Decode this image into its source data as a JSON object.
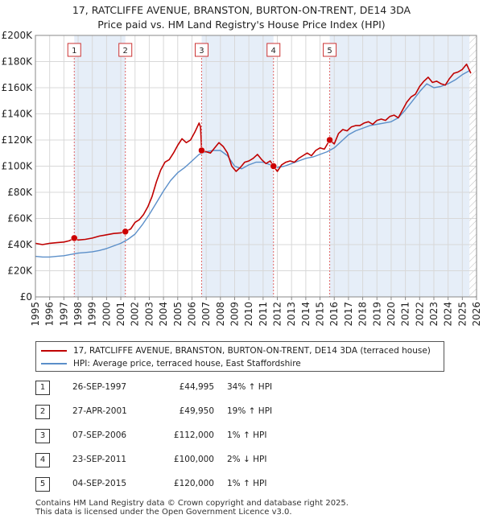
{
  "chart_data": {
    "type": "line",
    "title": "17, RATCLIFFE AVENUE, BRANSTON, BURTON-ON-TRENT, DE14 3DA",
    "subtitle": "Price paid vs. HM Land Registry's House Price Index (HPI)",
    "xlabel": "",
    "ylabel": "",
    "xlim": [
      1995,
      2026
    ],
    "ylim": [
      0,
      200000
    ],
    "x_ticks": [
      "1995",
      "1996",
      "1997",
      "1998",
      "1999",
      "2000",
      "2001",
      "2002",
      "2003",
      "2004",
      "2005",
      "2006",
      "2007",
      "2008",
      "2009",
      "2010",
      "2011",
      "2012",
      "2013",
      "2014",
      "2015",
      "2016",
      "2017",
      "2018",
      "2019",
      "2020",
      "2021",
      "2022",
      "2023",
      "2024",
      "2025",
      "2026"
    ],
    "y_ticks": [
      {
        "value": 0,
        "label": "£0"
      },
      {
        "value": 20000,
        "label": "£20K"
      },
      {
        "value": 40000,
        "label": "£40K"
      },
      {
        "value": 60000,
        "label": "£60K"
      },
      {
        "value": 80000,
        "label": "£80K"
      },
      {
        "value": 100000,
        "label": "£100K"
      },
      {
        "value": 120000,
        "label": "£120K"
      },
      {
        "value": 140000,
        "label": "£140K"
      },
      {
        "value": 160000,
        "label": "£160K"
      },
      {
        "value": 180000,
        "label": "£180K"
      },
      {
        "value": 200000,
        "label": "£200K"
      }
    ],
    "grid": true,
    "shaded_periods": [
      {
        "from": 1997.73,
        "to": 2001.32
      },
      {
        "from": 2006.68,
        "to": 2011.73
      },
      {
        "from": 2015.68,
        "to": 2025.5
      }
    ],
    "series": [
      {
        "name": "17, RATCLIFFE AVENUE, BRANSTON, BURTON-ON-TRENT, DE14 3DA (terraced house)",
        "color": "#c00000",
        "x": [
          1995.0,
          1995.5,
          1996.0,
          1996.5,
          1997.0,
          1997.4,
          1997.73,
          1998.0,
          1998.5,
          1999.0,
          1999.5,
          2000.0,
          2000.5,
          2001.0,
          2001.32,
          2001.7,
          2002.0,
          2002.3,
          2002.6,
          2002.9,
          2003.2,
          2003.5,
          2003.8,
          2004.1,
          2004.4,
          2004.7,
          2005.0,
          2005.3,
          2005.6,
          2005.9,
          2006.2,
          2006.5,
          2006.6,
          2006.68,
          2007.0,
          2007.3,
          2007.6,
          2007.9,
          2008.2,
          2008.5,
          2008.8,
          2009.1,
          2009.4,
          2009.7,
          2010.0,
          2010.3,
          2010.6,
          2010.9,
          2011.2,
          2011.5,
          2011.73,
          2012.0,
          2012.3,
          2012.6,
          2012.9,
          2013.2,
          2013.5,
          2013.8,
          2014.1,
          2014.4,
          2014.7,
          2015.0,
          2015.3,
          2015.68,
          2016.0,
          2016.3,
          2016.6,
          2016.9,
          2017.2,
          2017.5,
          2017.8,
          2018.1,
          2018.4,
          2018.7,
          2019.0,
          2019.3,
          2019.6,
          2019.9,
          2020.2,
          2020.5,
          2020.8,
          2021.1,
          2021.4,
          2021.7,
          2022.0,
          2022.3,
          2022.6,
          2022.9,
          2023.2,
          2023.5,
          2023.8,
          2024.1,
          2024.4,
          2024.7,
          2025.0,
          2025.3,
          2025.6
        ],
        "values": [
          41000,
          40000,
          41000,
          41500,
          42000,
          43000,
          44995,
          43500,
          44000,
          45000,
          46500,
          47500,
          48500,
          49000,
          49950,
          52000,
          57000,
          59000,
          63000,
          69000,
          77000,
          88000,
          97000,
          103000,
          105000,
          110000,
          116000,
          121000,
          118000,
          120000,
          126000,
          133000,
          130000,
          112000,
          111000,
          110000,
          114000,
          118000,
          115000,
          110000,
          100000,
          96000,
          99000,
          103000,
          104000,
          106000,
          109000,
          105000,
          102000,
          104000,
          100000,
          96000,
          101000,
          103000,
          104000,
          103000,
          106000,
          108000,
          110000,
          108000,
          112000,
          114000,
          113000,
          120000,
          117000,
          125000,
          128000,
          127000,
          130000,
          131000,
          131000,
          133000,
          134000,
          132000,
          135000,
          136000,
          135000,
          138000,
          139000,
          137000,
          143000,
          149000,
          153000,
          155000,
          161000,
          165000,
          168000,
          164000,
          165000,
          163000,
          162000,
          167000,
          171000,
          172000,
          174000,
          178000,
          171000
        ]
      },
      {
        "name": "HPI: Average price, terraced house, East Staffordshire",
        "color": "#5b8fc9",
        "x": [
          1995.0,
          1995.5,
          1996.0,
          1996.5,
          1997.0,
          1997.5,
          1998.0,
          1998.5,
          1999.0,
          1999.5,
          2000.0,
          2000.5,
          2001.0,
          2001.5,
          2002.0,
          2002.5,
          2003.0,
          2003.5,
          2004.0,
          2004.5,
          2005.0,
          2005.5,
          2006.0,
          2006.5,
          2007.0,
          2007.5,
          2008.0,
          2008.5,
          2009.0,
          2009.5,
          2010.0,
          2010.5,
          2011.0,
          2011.5,
          2012.0,
          2012.5,
          2013.0,
          2013.5,
          2014.0,
          2014.5,
          2015.0,
          2015.5,
          2016.0,
          2016.5,
          2017.0,
          2017.5,
          2018.0,
          2018.5,
          2019.0,
          2019.5,
          2020.0,
          2020.5,
          2021.0,
          2021.5,
          2022.0,
          2022.5,
          2023.0,
          2023.5,
          2024.0,
          2024.5,
          2025.0,
          2025.5
        ],
        "values": [
          31000,
          30500,
          30500,
          31000,
          31500,
          32500,
          33500,
          34000,
          34500,
          35500,
          37000,
          39000,
          41000,
          44000,
          48000,
          55000,
          63000,
          72000,
          81000,
          89000,
          95000,
          99000,
          104000,
          109000,
          111000,
          112000,
          112000,
          108000,
          100000,
          98000,
          101000,
          103000,
          103000,
          101000,
          99000,
          100000,
          102000,
          104000,
          106000,
          107000,
          109000,
          111000,
          114000,
          119000,
          124000,
          127000,
          129000,
          131000,
          132000,
          133000,
          134000,
          137000,
          143000,
          150000,
          157000,
          163000,
          160000,
          161000,
          163000,
          166000,
          170000,
          173000
        ]
      }
    ],
    "sales": [
      {
        "num": "1",
        "x": 1997.73,
        "value": 44995
      },
      {
        "num": "2",
        "x": 2001.32,
        "value": 49950
      },
      {
        "num": "3",
        "x": 2006.68,
        "value": 112000
      },
      {
        "num": "4",
        "x": 2011.73,
        "value": 100000
      },
      {
        "num": "5",
        "x": 2015.68,
        "value": 120000
      }
    ],
    "hatch_from": 2025.5
  },
  "legend": {
    "red_label": "17, RATCLIFFE AVENUE, BRANSTON, BURTON-ON-TRENT, DE14 3DA (terraced house)",
    "blue_label": "HPI: Average price, terraced house, East Staffordshire",
    "red_color": "#c00000",
    "blue_color": "#5b8fc9"
  },
  "table": [
    {
      "num": "1",
      "date": "26-SEP-1997",
      "price": "£44,995",
      "hpi": "34% ↑ HPI"
    },
    {
      "num": "2",
      "date": "27-APR-2001",
      "price": "£49,950",
      "hpi": "19% ↑ HPI"
    },
    {
      "num": "3",
      "date": "07-SEP-2006",
      "price": "£112,000",
      "hpi": "1% ↑ HPI"
    },
    {
      "num": "4",
      "date": "23-SEP-2011",
      "price": "£100,000",
      "hpi": "2% ↓ HPI"
    },
    {
      "num": "5",
      "date": "04-SEP-2015",
      "price": "£120,000",
      "hpi": "1% ↑ HPI"
    }
  ],
  "footer": {
    "line1": "Contains HM Land Registry data © Crown copyright and database right 2025.",
    "line2": "This data is licensed under the Open Government Licence v3.0."
  }
}
